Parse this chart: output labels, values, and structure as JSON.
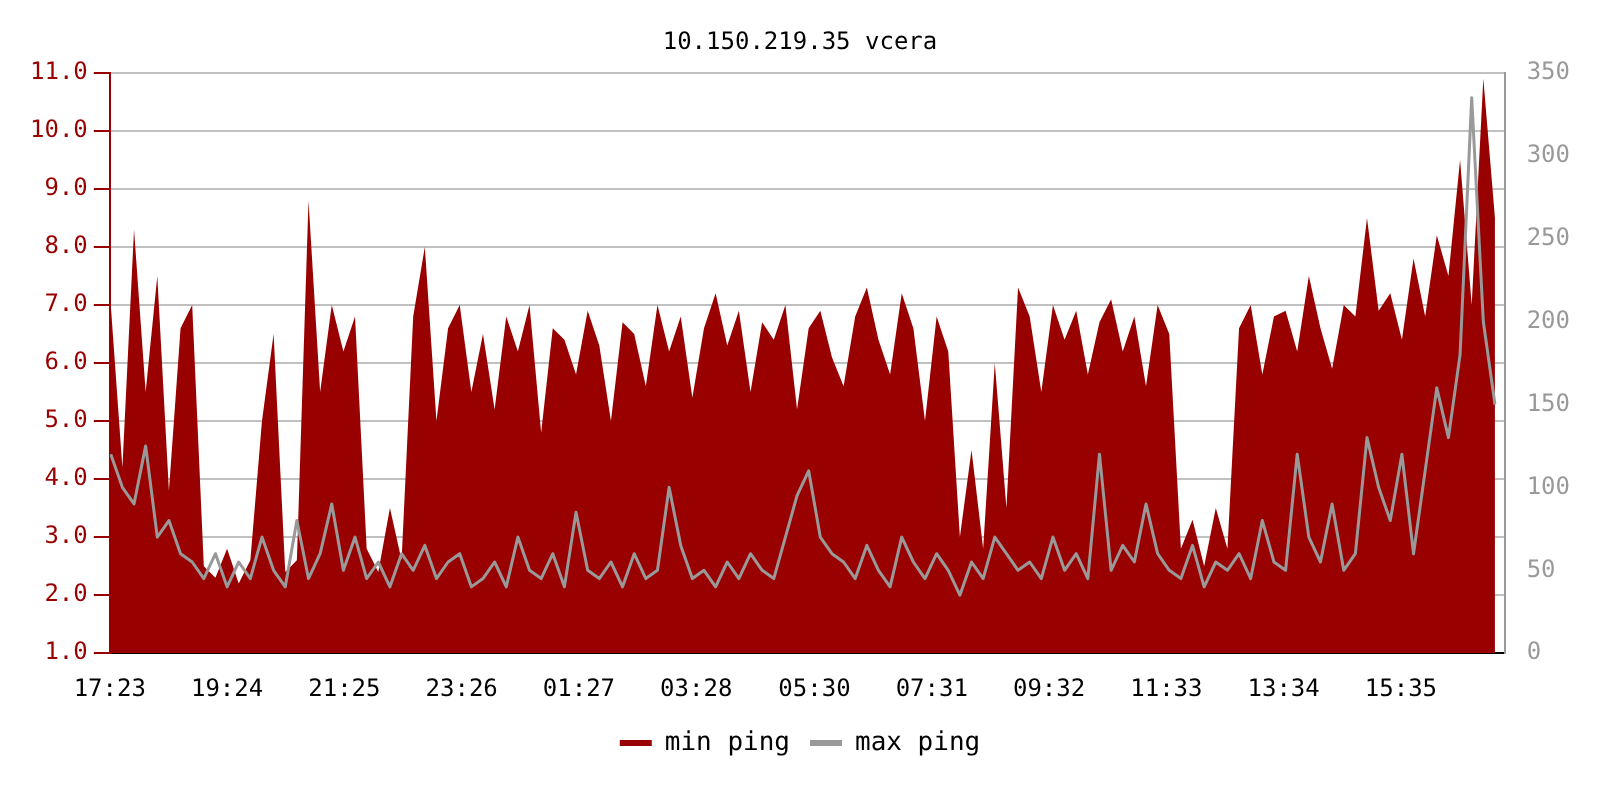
{
  "chart_data": {
    "type": "area",
    "title": "10.150.219.35 vcera",
    "x": [
      "--01-01T17:24",
      "--01-01T17:36",
      "--01-01T17:48",
      "--01-01T18:00",
      "--01-01T18:12",
      "--01-01T18:24",
      "--01-01T18:36",
      "--01-01T18:48",
      "--01-01T19:00",
      "--01-01T19:12",
      "--01-01T19:24",
      "--01-01T19:36",
      "--01-01T19:48",
      "--01-01T20:00",
      "--01-01T20:12",
      "--01-01T20:24",
      "--01-01T20:36",
      "--01-01T20:48",
      "--01-01T21:00",
      "--01-01T21:12",
      "--01-01T21:24",
      "--01-01T21:36",
      "--01-01T21:48",
      "--01-01T22:00",
      "--01-01T22:12",
      "--01-01T22:24",
      "--01-01T22:36",
      "--01-01T22:48",
      "--01-01T23:00",
      "--01-01T23:12",
      "--01-01T23:24",
      "--01-01T23:36",
      "--01-01T23:48",
      "--01-02T00:00",
      "--01-02T00:12",
      "--01-02T00:24",
      "--01-02T00:36",
      "--01-02T00:48",
      "--01-02T01:00",
      "--01-02T01:12",
      "--01-02T01:24",
      "--01-02T01:36",
      "--01-02T01:48",
      "--01-02T02:00",
      "--01-02T02:12",
      "--01-02T02:24",
      "--01-02T02:36",
      "--01-02T02:48",
      "--01-02T03:00",
      "--01-02T03:12",
      "--01-02T03:24",
      "--01-02T03:36",
      "--01-02T03:48",
      "--01-02T04:00",
      "--01-02T04:12",
      "--01-02T04:24",
      "--01-02T04:36",
      "--01-02T04:48",
      "--01-02T05:00",
      "--01-02T05:12",
      "--01-02T05:24",
      "--01-02T05:36",
      "--01-02T05:48",
      "--01-02T06:00",
      "--01-02T06:12",
      "--01-02T06:24",
      "--01-02T06:36",
      "--01-02T06:48",
      "--01-02T07:00",
      "--01-02T07:12",
      "--01-02T07:24",
      "--01-02T07:36",
      "--01-02T07:48",
      "--01-02T08:00",
      "--01-02T08:12",
      "--01-02T08:24",
      "--01-02T08:36",
      "--01-02T08:48",
      "--01-02T09:00",
      "--01-02T09:12",
      "--01-02T09:24",
      "--01-02T09:36",
      "--01-02T09:48",
      "--01-02T10:00",
      "--01-02T10:12",
      "--01-02T10:24",
      "--01-02T10:36",
      "--01-02T10:48",
      "--01-02T11:00",
      "--01-02T11:12",
      "--01-02T11:24",
      "--01-02T11:36",
      "--01-02T11:48",
      "--01-02T12:00",
      "--01-02T12:12",
      "--01-02T12:24",
      "--01-02T12:36",
      "--01-02T12:48",
      "--01-02T13:00",
      "--01-02T13:12",
      "--01-02T13:24",
      "--01-02T13:36",
      "--01-02T13:48",
      "--01-02T14:00",
      "--01-02T14:12",
      "--01-02T14:24",
      "--01-02T14:36",
      "--01-02T14:48",
      "--01-02T15:00",
      "--01-02T15:12",
      "--01-02T15:24",
      "--01-02T15:36",
      "--01-02T15:48",
      "--01-02T16:00",
      "--01-02T16:12",
      "--01-02T16:24",
      "--01-02T16:36",
      "--01-02T16:48",
      "--01-02T17:00",
      "--01-02T17:12"
    ],
    "series": [
      {
        "name": "min ping",
        "color": "#990000",
        "values": [
          7.0,
          4.2,
          8.3,
          5.5,
          7.5,
          3.8,
          6.6,
          7.0,
          2.5,
          2.3,
          2.8,
          2.2,
          2.6,
          5.0,
          6.5,
          2.4,
          2.6,
          8.8,
          5.5,
          7.0,
          6.2,
          6.8,
          2.8,
          2.4,
          3.5,
          2.6,
          6.8,
          8.0,
          5.0,
          6.6,
          7.0,
          5.5,
          6.5,
          5.2,
          6.8,
          6.2,
          7.0,
          4.8,
          6.6,
          6.4,
          5.8,
          6.9,
          6.3,
          5.0,
          6.7,
          6.5,
          5.6,
          7.0,
          6.2,
          6.8,
          5.4,
          6.6,
          7.2,
          6.3,
          6.9,
          5.5,
          6.7,
          6.4,
          7.0,
          5.2,
          6.6,
          6.9,
          6.1,
          5.6,
          6.8,
          7.3,
          6.4,
          5.8,
          7.2,
          6.6,
          5.0,
          6.8,
          6.2,
          3.0,
          4.5,
          2.8,
          6.0,
          3.5,
          7.3,
          6.8,
          5.5,
          7.0,
          6.4,
          6.9,
          5.8,
          6.7,
          7.1,
          6.2,
          6.8,
          5.6,
          7.0,
          6.5,
          2.8,
          3.3,
          2.5,
          3.5,
          2.8,
          6.6,
          7.0,
          5.8,
          6.8,
          6.9,
          6.2,
          7.5,
          6.6,
          5.9,
          7.0,
          6.8,
          8.5,
          6.9,
          7.2,
          6.4,
          7.8,
          6.8,
          8.2,
          7.5,
          9.5,
          7.0,
          10.9,
          8.5
        ]
      },
      {
        "name": "max ping",
        "type": "line",
        "axis": "y2",
        "color": "#999999",
        "values": [
          120,
          100,
          90,
          125,
          70,
          80,
          60,
          55,
          45,
          60,
          40,
          55,
          45,
          70,
          50,
          40,
          80,
          45,
          60,
          90,
          50,
          70,
          45,
          55,
          40,
          60,
          50,
          65,
          45,
          55,
          60,
          40,
          45,
          55,
          40,
          70,
          50,
          45,
          60,
          40,
          85,
          50,
          45,
          55,
          40,
          60,
          45,
          50,
          100,
          65,
          45,
          50,
          40,
          55,
          45,
          60,
          50,
          45,
          70,
          95,
          110,
          70,
          60,
          55,
          45,
          65,
          50,
          40,
          70,
          55,
          45,
          60,
          50,
          35,
          55,
          45,
          70,
          60,
          50,
          55,
          45,
          70,
          50,
          60,
          45,
          120,
          50,
          65,
          55,
          90,
          60,
          50,
          45,
          65,
          40,
          55,
          50,
          60,
          45,
          80,
          55,
          50,
          120,
          70,
          55,
          90,
          50,
          60,
          130,
          100,
          80,
          120,
          60,
          110,
          160,
          130,
          180,
          335,
          200,
          150
        ]
      }
    ],
    "xlim": [
      "--01-01T17:23",
      "--01-02T17:22"
    ],
    "xticks": [
      {
        "value": "--01-01T17:23",
        "label": "17:23"
      },
      {
        "value": "--01-01T19:24",
        "label": "19:24"
      },
      {
        "value": "--01-01T21:25",
        "label": "21:25"
      },
      {
        "value": "--01-01T23:26",
        "label": "23:26"
      },
      {
        "value": "--01-02T01:27",
        "label": "01:27"
      },
      {
        "value": "--01-02T03:28",
        "label": "03:28"
      },
      {
        "value": "--01-02T05:30",
        "label": "05:30"
      },
      {
        "value": "--01-02T07:31",
        "label": "07:31"
      },
      {
        "value": "--01-02T09:32",
        "label": "09:32"
      },
      {
        "value": "--01-02T11:33",
        "label": "11:33"
      },
      {
        "value": "--01-02T13:34",
        "label": "13:34"
      },
      {
        "value": "--01-02T15:35",
        "label": "15:35"
      }
    ],
    "ylim": [
      1,
      11
    ],
    "yticks": [
      {
        "value": 1,
        "label": "1.0"
      },
      {
        "value": 2,
        "label": "2.0"
      },
      {
        "value": 3,
        "label": "3.0"
      },
      {
        "value": 4,
        "label": "4.0"
      },
      {
        "value": 5,
        "label": "5.0"
      },
      {
        "value": 6,
        "label": "6.0"
      },
      {
        "value": 7,
        "label": "7.0"
      },
      {
        "value": 8,
        "label": "8.0"
      },
      {
        "value": 9,
        "label": "9.0"
      },
      {
        "value": 10,
        "label": "10.0"
      },
      {
        "value": 11,
        "label": "11.0"
      }
    ],
    "y2lim": [
      0,
      350
    ],
    "y2ticks": [
      0,
      50,
      100,
      150,
      200,
      250,
      300,
      350
    ],
    "grid": "y",
    "legend": "bottom"
  }
}
